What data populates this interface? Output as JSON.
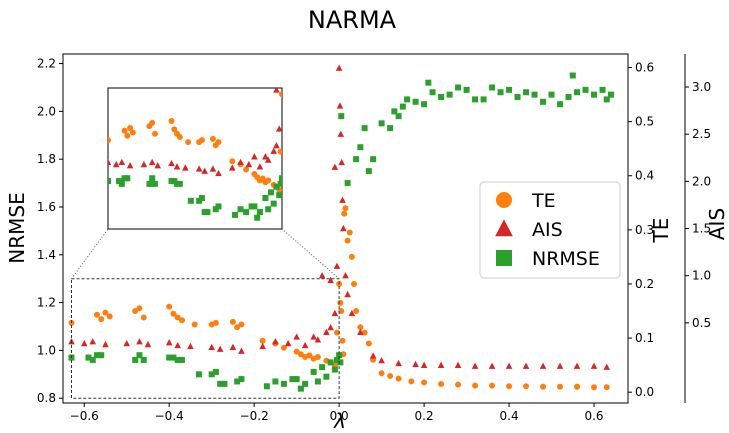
{
  "chart_data": {
    "type": "scatter",
    "title": "NARMA",
    "xlabel": "λ",
    "ylabel_left": "NRMSE",
    "ylabel_right_1": "TE",
    "ylabel_right_2": "AIS",
    "xlim": [
      -0.65,
      0.68
    ],
    "ylim_nrmse": [
      0.78,
      2.24
    ],
    "ylim_te": [
      -0.02,
      0.625
    ],
    "ylim_ais": [
      -0.35,
      3.35
    ],
    "x_ticks": [
      "−0.6",
      "−0.4",
      "−0.2",
      "0.0",
      "0.2",
      "0.4",
      "0.6"
    ],
    "x_tick_values": [
      -0.6,
      -0.4,
      -0.2,
      0.0,
      0.2,
      0.4,
      0.6
    ],
    "nrmse_ticks": [
      "0.8",
      "1.0",
      "1.2",
      "1.4",
      "1.6",
      "1.8",
      "2.0",
      "2.2"
    ],
    "nrmse_tick_values": [
      0.8,
      1.0,
      1.2,
      1.4,
      1.6,
      1.8,
      2.0,
      2.2
    ],
    "te_ticks": [
      "0.0",
      "0.1",
      "0.2",
      "0.3",
      "0.4",
      "0.5",
      "0.6"
    ],
    "te_tick_values": [
      0.0,
      0.1,
      0.2,
      0.3,
      0.4,
      0.5,
      0.6
    ],
    "ais_ticks": [
      "0.5",
      "1.0",
      "1.5",
      "2.0",
      "2.5",
      "3.0"
    ],
    "ais_tick_values": [
      0.5,
      1.0,
      1.5,
      2.0,
      2.5,
      3.0
    ],
    "legend_position": "center-right",
    "inset": {
      "xlim": [
        -0.63,
        0.0
      ],
      "ylim": [
        0.8,
        1.3
      ]
    },
    "series": [
      {
        "name": "TE",
        "axis": "te",
        "color": "#ff7f0e",
        "marker": "circle",
        "points": [
          [
            -0.63,
            0.128
          ],
          [
            -0.57,
            0.143
          ],
          [
            -0.56,
            0.135
          ],
          [
            -0.55,
            0.147
          ],
          [
            -0.54,
            0.14
          ],
          [
            -0.48,
            0.15
          ],
          [
            -0.47,
            0.155
          ],
          [
            -0.46,
            0.138
          ],
          [
            -0.4,
            0.158
          ],
          [
            -0.39,
            0.145
          ],
          [
            -0.38,
            0.138
          ],
          [
            -0.37,
            0.133
          ],
          [
            -0.34,
            0.125
          ],
          [
            -0.3,
            0.125
          ],
          [
            -0.29,
            0.128
          ],
          [
            -0.25,
            0.13
          ],
          [
            -0.24,
            0.12
          ],
          [
            -0.23,
            0.125
          ],
          [
            -0.18,
            0.095
          ],
          [
            -0.15,
            0.09
          ],
          [
            -0.13,
            0.082
          ],
          [
            -0.1,
            0.075
          ],
          [
            -0.09,
            0.07
          ],
          [
            -0.08,
            0.065
          ],
          [
            -0.07,
            0.068
          ],
          [
            -0.06,
            0.062
          ],
          [
            -0.05,
            0.065
          ],
          [
            -0.03,
            0.058
          ],
          [
            -0.02,
            0.055
          ],
          [
            -0.01,
            0.05
          ],
          [
            -0.005,
            0.11
          ],
          [
            0.0,
            0.2
          ],
          [
            0.003,
            0.165
          ],
          [
            0.005,
            0.15
          ],
          [
            0.008,
            0.095
          ],
          [
            0.01,
            0.07
          ],
          [
            0.012,
            0.33
          ],
          [
            0.015,
            0.34
          ],
          [
            0.02,
            0.28
          ],
          [
            0.025,
            0.295
          ],
          [
            0.03,
            0.25
          ],
          [
            0.035,
            0.2
          ],
          [
            0.04,
            0.15
          ],
          [
            0.05,
            0.12
          ],
          [
            0.06,
            0.11
          ],
          [
            0.07,
            0.09
          ],
          [
            0.08,
            0.06
          ],
          [
            0.1,
            0.035
          ],
          [
            0.12,
            0.03
          ],
          [
            0.14,
            0.025
          ],
          [
            0.17,
            0.02
          ],
          [
            0.2,
            0.018
          ],
          [
            0.24,
            0.015
          ],
          [
            0.28,
            0.014
          ],
          [
            0.32,
            0.012
          ],
          [
            0.36,
            0.012
          ],
          [
            0.4,
            0.011
          ],
          [
            0.44,
            0.011
          ],
          [
            0.48,
            0.01
          ],
          [
            0.52,
            0.01
          ],
          [
            0.56,
            0.01
          ],
          [
            0.6,
            0.009
          ],
          [
            0.63,
            0.009
          ]
        ]
      },
      {
        "name": "AIS",
        "axis": "ais",
        "color": "#d62728",
        "marker": "triangle",
        "points": [
          [
            -0.63,
            0.3
          ],
          [
            -0.6,
            0.28
          ],
          [
            -0.58,
            0.3
          ],
          [
            -0.55,
            0.27
          ],
          [
            -0.5,
            0.28
          ],
          [
            -0.47,
            0.3
          ],
          [
            -0.45,
            0.27
          ],
          [
            -0.4,
            0.29
          ],
          [
            -0.38,
            0.26
          ],
          [
            -0.35,
            0.25
          ],
          [
            -0.3,
            0.24
          ],
          [
            -0.28,
            0.22
          ],
          [
            -0.25,
            0.24
          ],
          [
            -0.23,
            0.2
          ],
          [
            -0.18,
            0.25
          ],
          [
            -0.15,
            0.3
          ],
          [
            -0.12,
            0.28
          ],
          [
            -0.1,
            0.35
          ],
          [
            -0.08,
            0.26
          ],
          [
            -0.06,
            0.35
          ],
          [
            -0.05,
            0.32
          ],
          [
            -0.03,
            0.4
          ],
          [
            -0.02,
            0.45
          ],
          [
            -0.01,
            0.6
          ],
          [
            -0.005,
            1.1
          ],
          [
            0.0,
            3.2
          ],
          [
            0.002,
            2.8
          ],
          [
            0.004,
            2.5
          ],
          [
            0.006,
            2.2
          ],
          [
            0.008,
            1.8
          ],
          [
            0.01,
            1.5
          ],
          [
            0.015,
            1.0
          ],
          [
            0.02,
            0.8
          ],
          [
            0.03,
            0.6
          ],
          [
            0.05,
            0.4
          ],
          [
            0.08,
            0.15
          ],
          [
            0.1,
            0.1
          ],
          [
            0.14,
            0.07
          ],
          [
            0.18,
            0.06
          ],
          [
            0.2,
            0.05
          ],
          [
            0.24,
            0.05
          ],
          [
            0.28,
            0.05
          ],
          [
            0.32,
            0.04
          ],
          [
            0.36,
            0.04
          ],
          [
            0.4,
            0.04
          ],
          [
            0.44,
            0.04
          ],
          [
            0.48,
            0.04
          ],
          [
            0.52,
            0.04
          ],
          [
            0.56,
            0.04
          ],
          [
            0.6,
            0.04
          ],
          [
            0.63,
            0.03
          ],
          [
            -0.04,
            1.0
          ],
          [
            -0.02,
            0.95
          ],
          [
            -0.01,
            2.15
          ]
        ]
      },
      {
        "name": "NRMSE",
        "axis": "nrmse",
        "color": "#2ca02c",
        "marker": "square",
        "points": [
          [
            -0.63,
            0.97
          ],
          [
            -0.59,
            0.97
          ],
          [
            -0.58,
            0.96
          ],
          [
            -0.57,
            0.98
          ],
          [
            -0.56,
            0.98
          ],
          [
            -0.48,
            0.96
          ],
          [
            -0.47,
            0.98
          ],
          [
            -0.46,
            0.96
          ],
          [
            -0.4,
            0.97
          ],
          [
            -0.39,
            0.97
          ],
          [
            -0.38,
            0.96
          ],
          [
            -0.37,
            0.96
          ],
          [
            -0.33,
            0.9
          ],
          [
            -0.3,
            0.9
          ],
          [
            -0.29,
            0.91
          ],
          [
            -0.28,
            0.86
          ],
          [
            -0.27,
            0.86
          ],
          [
            -0.24,
            0.87
          ],
          [
            -0.23,
            0.88
          ],
          [
            -0.17,
            0.85
          ],
          [
            -0.15,
            0.87
          ],
          [
            -0.13,
            0.86
          ],
          [
            -0.11,
            0.88
          ],
          [
            -0.1,
            0.88
          ],
          [
            -0.09,
            0.84
          ],
          [
            -0.08,
            0.86
          ],
          [
            -0.06,
            0.91
          ],
          [
            -0.05,
            0.87
          ],
          [
            -0.04,
            0.93
          ],
          [
            -0.03,
            0.89
          ],
          [
            -0.02,
            0.95
          ],
          [
            -0.01,
            0.92
          ],
          [
            -0.005,
            0.96
          ],
          [
            0.0,
            0.98
          ],
          [
            0.003,
            0.95
          ],
          [
            0.005,
            1.98
          ],
          [
            0.02,
            1.7
          ],
          [
            0.04,
            1.8
          ],
          [
            0.05,
            1.85
          ],
          [
            0.06,
            1.93
          ],
          [
            0.07,
            1.75
          ],
          [
            0.08,
            1.8
          ],
          [
            0.1,
            1.95
          ],
          [
            0.12,
            1.93
          ],
          [
            0.13,
            2.0
          ],
          [
            0.14,
            1.98
          ],
          [
            0.15,
            2.02
          ],
          [
            0.16,
            2.05
          ],
          [
            0.18,
            2.04
          ],
          [
            0.2,
            2.03
          ],
          [
            0.21,
            2.12
          ],
          [
            0.22,
            2.08
          ],
          [
            0.24,
            2.06
          ],
          [
            0.26,
            2.07
          ],
          [
            0.28,
            2.1
          ],
          [
            0.3,
            2.09
          ],
          [
            0.32,
            2.05
          ],
          [
            0.34,
            2.05
          ],
          [
            0.36,
            2.1
          ],
          [
            0.38,
            2.08
          ],
          [
            0.4,
            2.09
          ],
          [
            0.42,
            2.06
          ],
          [
            0.44,
            2.08
          ],
          [
            0.46,
            2.07
          ],
          [
            0.48,
            2.04
          ],
          [
            0.5,
            2.07
          ],
          [
            0.52,
            2.03
          ],
          [
            0.54,
            2.06
          ],
          [
            0.55,
            2.15
          ],
          [
            0.56,
            2.08
          ],
          [
            0.58,
            2.09
          ],
          [
            0.6,
            2.07
          ],
          [
            0.62,
            2.09
          ],
          [
            0.63,
            2.05
          ],
          [
            0.64,
            2.07
          ]
        ]
      }
    ]
  }
}
